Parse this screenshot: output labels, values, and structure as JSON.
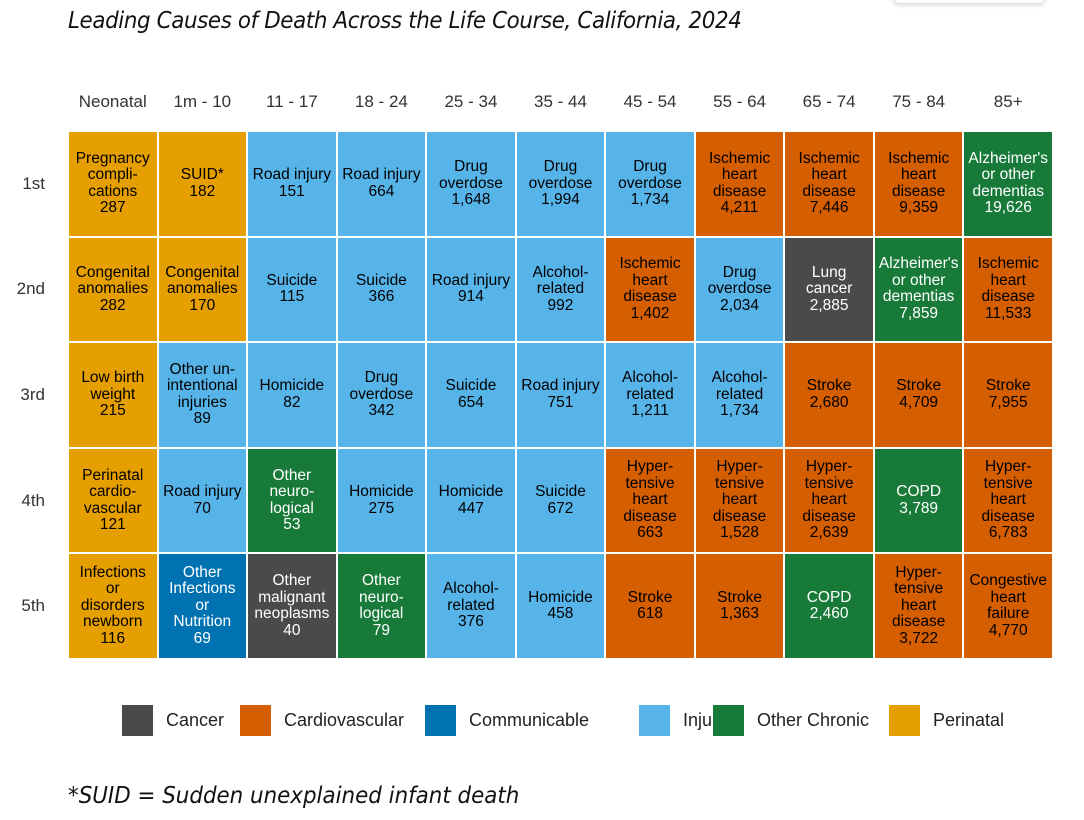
{
  "chart_data": {
    "type": "table",
    "title": "Leading Causes of Death Across the Life Course, California, 2024",
    "footnote": "*SUID = Sudden unexplained infant death",
    "age_groups": [
      "Neonatal",
      "1m - 10",
      "11 - 17",
      "18 - 24",
      "25 - 34",
      "35 - 44",
      "45 - 54",
      "55 - 64",
      "65 - 74",
      "75 - 84",
      "85+"
    ],
    "ranks": [
      "1st",
      "2nd",
      "3rd",
      "4th",
      "5th"
    ],
    "categories": [
      {
        "name": "Cancer",
        "color": "#4a4a4a",
        "text_color": "#ffffff"
      },
      {
        "name": "Cardiovascular",
        "color": "#d55e00",
        "text_color": "#000000"
      },
      {
        "name": "Communicable",
        "color": "#0072b2",
        "text_color": "#ffffff"
      },
      {
        "name": "Injury",
        "color": "#56b4e9",
        "text_color": "#000000"
      },
      {
        "name": "Other Chronic",
        "color": "#177a38",
        "text_color": "#ffffff"
      },
      {
        "name": "Perinatal",
        "color": "#e69f00",
        "text_color": "#000000"
      }
    ],
    "cells": [
      [
        {
          "label": "Pregnancy\ncompli-\ncations",
          "value": "287",
          "category": "Perinatal"
        },
        {
          "label": "SUID*",
          "value": "182",
          "category": "Perinatal"
        },
        {
          "label": "Road injury",
          "value": "151",
          "category": "Injury"
        },
        {
          "label": "Road injury",
          "value": "664",
          "category": "Injury"
        },
        {
          "label": "Drug\noverdose",
          "value": "1,648",
          "category": "Injury"
        },
        {
          "label": "Drug\noverdose",
          "value": "1,994",
          "category": "Injury"
        },
        {
          "label": "Drug\noverdose",
          "value": "1,734",
          "category": "Injury"
        },
        {
          "label": "Ischemic\nheart\ndisease",
          "value": "4,211",
          "category": "Cardiovascular"
        },
        {
          "label": "Ischemic\nheart\ndisease",
          "value": "7,446",
          "category": "Cardiovascular"
        },
        {
          "label": "Ischemic\nheart\ndisease",
          "value": "9,359",
          "category": "Cardiovascular"
        },
        {
          "label": "Alzheimer's\nor other\ndementias",
          "value": "19,626",
          "category": "Other Chronic"
        }
      ],
      [
        {
          "label": "Congenital\nanomalies",
          "value": "282",
          "category": "Perinatal"
        },
        {
          "label": "Congenital\nanomalies",
          "value": "170",
          "category": "Perinatal"
        },
        {
          "label": "Suicide",
          "value": "115",
          "category": "Injury"
        },
        {
          "label": "Suicide",
          "value": "366",
          "category": "Injury"
        },
        {
          "label": "Road injury",
          "value": "914",
          "category": "Injury"
        },
        {
          "label": "Alcohol-\nrelated",
          "value": "992",
          "category": "Injury"
        },
        {
          "label": "Ischemic\nheart\ndisease",
          "value": "1,402",
          "category": "Cardiovascular"
        },
        {
          "label": "Drug\noverdose",
          "value": "2,034",
          "category": "Injury"
        },
        {
          "label": "Lung\ncancer",
          "value": "2,885",
          "category": "Cancer"
        },
        {
          "label": "Alzheimer's\nor other\ndementias",
          "value": "7,859",
          "category": "Other Chronic"
        },
        {
          "label": "Ischemic\nheart\ndisease",
          "value": "11,533",
          "category": "Cardiovascular"
        }
      ],
      [
        {
          "label": "Low birth\nweight",
          "value": "215",
          "category": "Perinatal"
        },
        {
          "label": "Other un-\nintentional\ninjuries",
          "value": "89",
          "category": "Injury"
        },
        {
          "label": "Homicide",
          "value": "82",
          "category": "Injury"
        },
        {
          "label": "Drug\noverdose",
          "value": "342",
          "category": "Injury"
        },
        {
          "label": "Suicide",
          "value": "654",
          "category": "Injury"
        },
        {
          "label": "Road injury",
          "value": "751",
          "category": "Injury"
        },
        {
          "label": "Alcohol-\nrelated",
          "value": "1,211",
          "category": "Injury"
        },
        {
          "label": "Alcohol-\nrelated",
          "value": "1,734",
          "category": "Injury"
        },
        {
          "label": "Stroke",
          "value": "2,680",
          "category": "Cardiovascular"
        },
        {
          "label": "Stroke",
          "value": "4,709",
          "category": "Cardiovascular"
        },
        {
          "label": "Stroke",
          "value": "7,955",
          "category": "Cardiovascular"
        }
      ],
      [
        {
          "label": "Perinatal\ncardio-\nvascular",
          "value": "121",
          "category": "Perinatal"
        },
        {
          "label": "Road injury",
          "value": "70",
          "category": "Injury"
        },
        {
          "label": "Other\nneuro-\nlogical",
          "value": "53",
          "category": "Other Chronic"
        },
        {
          "label": "Homicide",
          "value": "275",
          "category": "Injury"
        },
        {
          "label": "Homicide",
          "value": "447",
          "category": "Injury"
        },
        {
          "label": "Suicide",
          "value": "672",
          "category": "Injury"
        },
        {
          "label": "Hyper-\ntensive\nheart\ndisease",
          "value": "663",
          "category": "Cardiovascular"
        },
        {
          "label": "Hyper-\ntensive\nheart\ndisease",
          "value": "1,528",
          "category": "Cardiovascular"
        },
        {
          "label": "Hyper-\ntensive\nheart\ndisease",
          "value": "2,639",
          "category": "Cardiovascular"
        },
        {
          "label": "COPD",
          "value": "3,789",
          "category": "Other Chronic"
        },
        {
          "label": "Hyper-\ntensive\nheart\ndisease",
          "value": "6,783",
          "category": "Cardiovascular"
        }
      ],
      [
        {
          "label": "Infections\nor\ndisorders\nnewborn",
          "value": "116",
          "category": "Perinatal"
        },
        {
          "label": "Other\nInfections\nor\nNutrition",
          "value": "69",
          "category": "Communicable"
        },
        {
          "label": "Other\nmalignant\nneoplasms",
          "value": "40",
          "category": "Cancer"
        },
        {
          "label": "Other\nneuro-\nlogical",
          "value": "79",
          "category": "Other Chronic"
        },
        {
          "label": "Alcohol-\nrelated",
          "value": "376",
          "category": "Injury"
        },
        {
          "label": "Homicide",
          "value": "458",
          "category": "Injury"
        },
        {
          "label": "Stroke",
          "value": "618",
          "category": "Cardiovascular"
        },
        {
          "label": "Stroke",
          "value": "1,363",
          "category": "Cardiovascular"
        },
        {
          "label": "COPD",
          "value": "2,460",
          "category": "Other Chronic"
        },
        {
          "label": "Hyper-\ntensive\nheart\ndisease",
          "value": "3,722",
          "category": "Cardiovascular"
        },
        {
          "label": "Congestive\nheart\nfailure",
          "value": "4,770",
          "category": "Cardiovascular"
        }
      ]
    ],
    "legend": [
      "Cancer",
      "Cardiovascular",
      "Communicable",
      "Injury",
      "Other Chronic",
      "Perinatal"
    ],
    "legend_position": "bottom"
  }
}
